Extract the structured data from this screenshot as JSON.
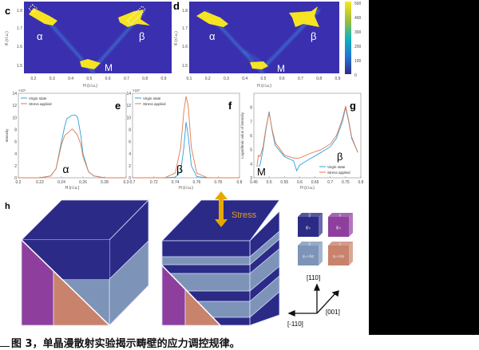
{
  "caption": "图 3，单晶漫散射实验揭示畴壁的应力调控规律。",
  "panels": {
    "c": {
      "label": "c",
      "ylabel": "K (r.l.u.)",
      "xlabel": "H (r.l.u.)",
      "xticks": [
        "0.2",
        "0.3",
        "0.4",
        "0.5",
        "0.6",
        "0.7",
        "0.8",
        "0.9"
      ],
      "yticks": [
        "1.8",
        "1.7",
        "1.6",
        "1.5"
      ],
      "annotations": [
        "α",
        "β",
        "M"
      ]
    },
    "d": {
      "label": "d",
      "ylabel": "K (r.l.u.)",
      "xlabel": "H (r.l.u.)",
      "xticks": [
        "0.1",
        "0.2",
        "0.3",
        "0.4",
        "0.5",
        "0.6",
        "0.7",
        "0.8",
        "0.9"
      ],
      "yticks": [
        "1.8",
        "1.7",
        "1.6",
        "1.5"
      ],
      "annotations": [
        "α",
        "β",
        "M"
      ],
      "colorbar_ticks": [
        "500",
        "400",
        "300",
        "200",
        "100",
        "0"
      ]
    },
    "h": {
      "label": "h",
      "stress_label": "Stress",
      "legend": [
        {
          "phase": "β",
          "value": "φ₀"
        },
        {
          "phase": "α",
          "value": "φ₀"
        },
        {
          "phase": "β",
          "value": "φ₀+Δφ"
        },
        {
          "phase": "α",
          "value": "φ₀+Δφ"
        }
      ],
      "axes": [
        "[110]",
        "[001]",
        "[-110]"
      ]
    }
  },
  "colors": {
    "map_bg": "#3a2fae",
    "map_peak": "#f6e422",
    "virgin": "#2f9fd8",
    "stress": "#e07a4f",
    "cube_dark": "#2b2a86",
    "cube_light": "#7d94b8",
    "magenta": "#8e3f9e",
    "orange": "#c9826b"
  },
  "chart_data": [
    {
      "type": "line",
      "label": "e",
      "title": "",
      "xlabel": "H (r.l.u.)",
      "ylabel": "Intensity",
      "y_exponent": "×10⁷",
      "xlim": [
        0.2,
        0.3
      ],
      "ylim": [
        0,
        14
      ],
      "xticks": [
        "0.2",
        "0.22",
        "0.24",
        "0.26",
        "0.28",
        "0.3"
      ],
      "yticks": [
        "0",
        "2",
        "4",
        "6",
        "8",
        "10",
        "12",
        "14"
      ],
      "legend": "top-left",
      "annotation": "α",
      "series": [
        {
          "name": "Virgin state",
          "x": [
            0.2,
            0.22,
            0.23,
            0.235,
            0.24,
            0.243,
            0.245,
            0.25,
            0.253,
            0.255,
            0.258,
            0.26,
            0.265,
            0.27,
            0.28,
            0.3
          ],
          "y": [
            0,
            0,
            0.3,
            1.5,
            6,
            8.5,
            9.8,
            10.4,
            10.4,
            10,
            7,
            4,
            1,
            0.3,
            0,
            0
          ]
        },
        {
          "name": "Stress applied",
          "x": [
            0.2,
            0.22,
            0.23,
            0.235,
            0.24,
            0.243,
            0.245,
            0.25,
            0.253,
            0.255,
            0.258,
            0.26,
            0.265,
            0.27,
            0.28,
            0.3
          ],
          "y": [
            0,
            0,
            0.3,
            1.5,
            5.5,
            7,
            7.3,
            8.1,
            7.5,
            7,
            5.5,
            3.5,
            1,
            0.3,
            0,
            0
          ]
        }
      ]
    },
    {
      "type": "line",
      "label": "f",
      "title": "",
      "xlabel": "H (r.l.u.)",
      "ylabel": "",
      "y_exponent": "×10⁷",
      "xlim": [
        0.7,
        0.8
      ],
      "ylim": [
        0,
        14
      ],
      "xticks": [
        "0.7",
        "0.72",
        "0.74",
        "0.76",
        "0.78",
        "0.8"
      ],
      "yticks": [
        "0",
        "2",
        "4",
        "6",
        "8",
        "10",
        "12",
        "14"
      ],
      "legend": "top-left",
      "annotation": "β",
      "series": [
        {
          "name": "Virgin state",
          "x": [
            0.7,
            0.73,
            0.74,
            0.745,
            0.748,
            0.75,
            0.752,
            0.755,
            0.76,
            0.77,
            0.8
          ],
          "y": [
            0,
            0,
            0.1,
            1,
            5,
            9.2,
            7,
            2,
            0.2,
            0,
            0
          ]
        },
        {
          "name": "Stress applied",
          "x": [
            0.7,
            0.73,
            0.74,
            0.745,
            0.748,
            0.75,
            0.752,
            0.755,
            0.76,
            0.77,
            0.8
          ],
          "y": [
            0,
            0,
            0.8,
            5,
            11,
            13.5,
            12,
            5,
            0.8,
            0,
            0
          ]
        }
      ]
    },
    {
      "type": "line",
      "label": "g",
      "title": "",
      "xlabel": "H (r.l.u.)",
      "ylabel": "Logarithmic value of intensity",
      "xlim": [
        0.45,
        0.8
      ],
      "ylim": [
        3,
        9
      ],
      "xticks": [
        "0.45",
        "0.5",
        "0.55",
        "0.6",
        "0.65",
        "0.7",
        "0.75",
        "0.8"
      ],
      "yticks": [
        "3",
        "4",
        "5",
        "6",
        "7",
        "8"
      ],
      "legend": "bottom-right",
      "annotations": [
        "M",
        "β"
      ],
      "series": [
        {
          "name": "Virgin state",
          "x": [
            0.465,
            0.47,
            0.48,
            0.49,
            0.5,
            0.51,
            0.52,
            0.55,
            0.58,
            0.59,
            0.6,
            0.63,
            0.67,
            0.7,
            0.72,
            0.74,
            0.75,
            0.76,
            0.77,
            0.79
          ],
          "y": [
            3.8,
            3.9,
            5,
            6.5,
            7.7,
            6.3,
            5.3,
            4.5,
            4.2,
            3.5,
            3.9,
            4.3,
            4.8,
            5.2,
            5.8,
            7,
            8,
            7,
            5.8,
            4.8
          ]
        },
        {
          "name": "Stress applied",
          "x": [
            0.46,
            0.465,
            0.47,
            0.48,
            0.49,
            0.5,
            0.51,
            0.52,
            0.55,
            0.58,
            0.6,
            0.63,
            0.67,
            0.7,
            0.72,
            0.74,
            0.75,
            0.76,
            0.77,
            0.79
          ],
          "y": [
            3.8,
            4.6,
            4.5,
            5.2,
            6.6,
            7.6,
            6.4,
            5.5,
            4.6,
            4.4,
            4.4,
            4.7,
            5.0,
            5.4,
            6,
            7.2,
            8.1,
            7.1,
            5.9,
            4.8
          ]
        }
      ]
    }
  ]
}
